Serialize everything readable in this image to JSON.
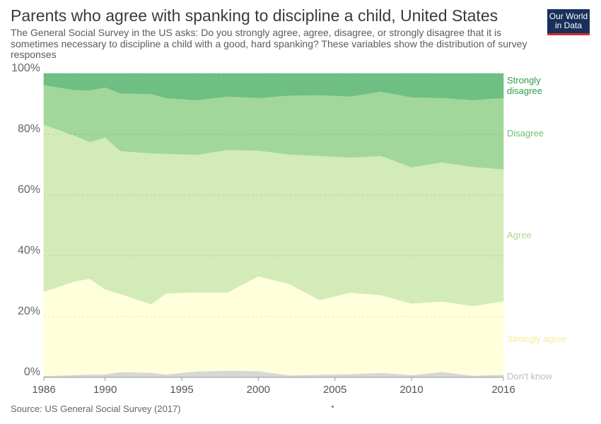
{
  "header": {
    "title": "Parents who agree with spanking to discipline a child, United States",
    "subtitle": "The General Social Survey in the US asks: Do you strongly agree, agree, disagree, or strongly disagree that it is sometimes necessary to discipline a child with a good, hard spanking? These variables show the distribution of survey responses"
  },
  "logo": {
    "line1": "Our World",
    "line2": "in Data"
  },
  "footer": {
    "source": "Source: US General Social Survey (2017)"
  },
  "chart_data": {
    "type": "area",
    "stacked": true,
    "x": [
      1986,
      1988,
      1989,
      1990,
      1991,
      1993,
      1994,
      1996,
      1998,
      2000,
      2002,
      2004,
      2006,
      2008,
      2010,
      2012,
      2014,
      2016
    ],
    "series": [
      {
        "name": "Don't know",
        "color": "#d7d7d7",
        "values": [
          0.5,
          0.8,
          1.0,
          1.0,
          1.8,
          1.5,
          1.0,
          2.0,
          2.2,
          2.1,
          0.7,
          0.9,
          1.1,
          1.5,
          0.8,
          1.8,
          0.6,
          0.9
        ]
      },
      {
        "name": "Strongly agree",
        "color": "#ffffdc",
        "values": [
          27.7,
          30.8,
          31.5,
          28.0,
          25.7,
          22.6,
          26.7,
          26.0,
          25.8,
          31.2,
          30.1,
          24.6,
          26.8,
          25.6,
          23.5,
          23.2,
          22.9,
          24.2
        ]
      },
      {
        "name": "Agree",
        "color": "#d2ebb8",
        "values": [
          55.0,
          48.0,
          45.0,
          50.0,
          47.0,
          49.7,
          45.9,
          45.3,
          46.9,
          41.4,
          42.6,
          47.4,
          44.5,
          45.8,
          44.9,
          45.8,
          45.8,
          43.4
        ]
      },
      {
        "name": "Disagree",
        "color": "#a2d79b",
        "values": [
          13.0,
          15.0,
          17.0,
          16.5,
          19.0,
          19.5,
          18.3,
          18.0,
          17.6,
          17.3,
          19.4,
          20.0,
          20.1,
          21.2,
          23.0,
          21.2,
          22.0,
          23.5
        ]
      },
      {
        "name": "Strongly disagree",
        "color": "#6fbe83",
        "values": [
          3.8,
          5.4,
          5.5,
          4.5,
          6.5,
          6.7,
          8.1,
          8.7,
          7.5,
          8.0,
          7.2,
          7.1,
          7.5,
          5.9,
          7.8,
          8.0,
          8.7,
          8.0
        ]
      }
    ],
    "label_colors": [
      "#bdbdbd",
      "#f2ef9c",
      "#a9d98a",
      "#6dbf70",
      "#2e9c4b"
    ],
    "xlim": [
      1986,
      2016
    ],
    "ylim": [
      0,
      100
    ],
    "yticks": [
      "0%",
      "20%",
      "40%",
      "60%",
      "80%",
      "100%"
    ],
    "xticks": [
      1986,
      1990,
      1995,
      2000,
      2005,
      2010,
      2016
    ],
    "grid": "horizontal-dashed"
  }
}
